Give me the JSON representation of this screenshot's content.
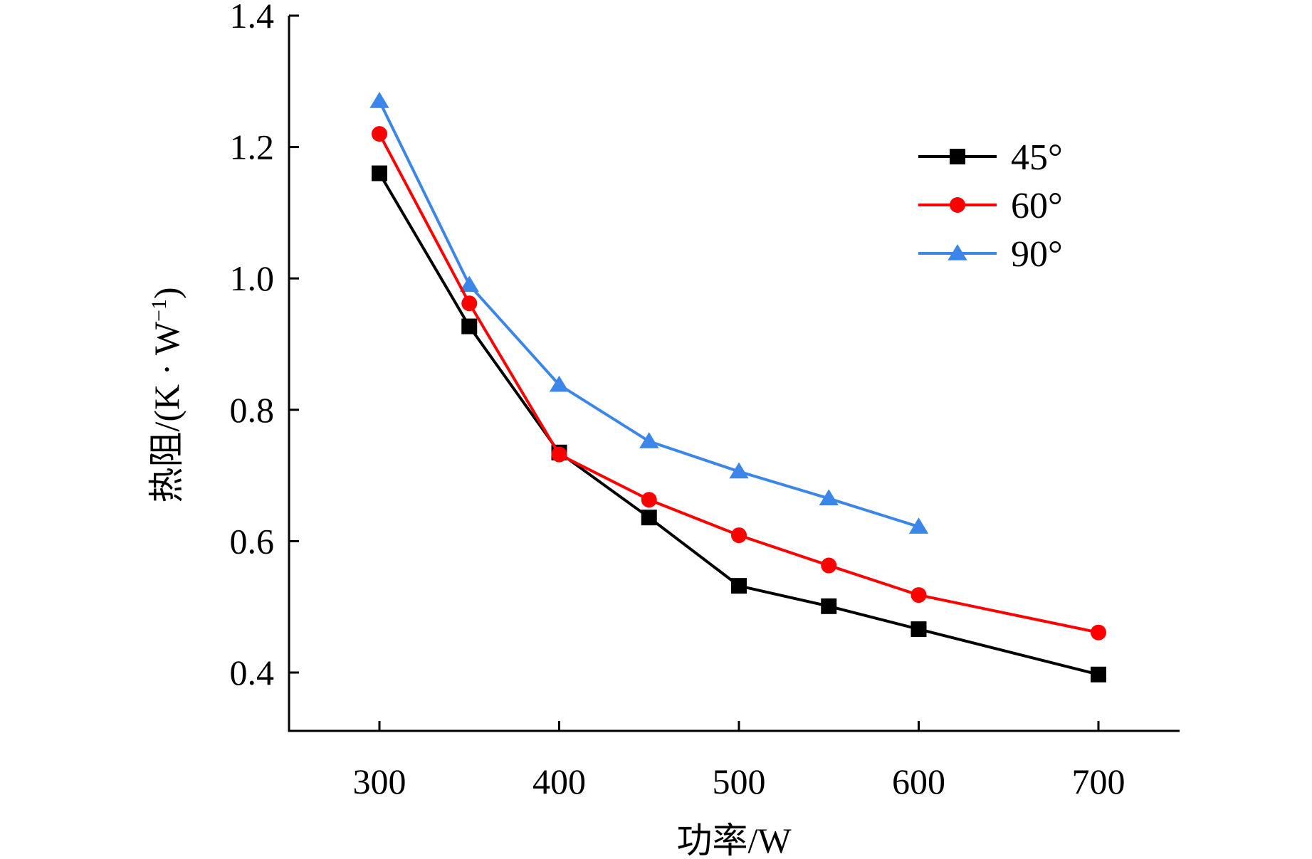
{
  "chart_data": {
    "type": "line",
    "title": "",
    "xlabel": "功率/W",
    "ylabel": "热阻/(K·W⁻¹)",
    "ylabel_parts": {
      "main": "热阻/(K · W",
      "superscript": "−1",
      "close": ")"
    },
    "xlim": [
      250,
      750
    ],
    "ylim": [
      0.3,
      1.4
    ],
    "xticks": [
      300,
      400,
      500,
      600,
      700
    ],
    "xtick_labels": [
      "300",
      "400",
      "500",
      "600",
      "700"
    ],
    "yticks": [
      0.4,
      0.6,
      0.8,
      1.0,
      1.2,
      1.4
    ],
    "ytick_labels": [
      "0.4",
      "0.6",
      "0.8",
      "1.0",
      "1.2",
      "1.4"
    ],
    "grid": false,
    "legend_position": "top-right",
    "series": [
      {
        "name": "45°",
        "color": "#000000",
        "marker": "square",
        "x": [
          300,
          350,
          400,
          450,
          500,
          550,
          600,
          700
        ],
        "y": [
          1.16,
          0.927,
          0.735,
          0.636,
          0.532,
          0.501,
          0.466,
          0.397
        ]
      },
      {
        "name": "60°",
        "color": "#ff0000",
        "marker": "circle",
        "x": [
          300,
          350,
          400,
          450,
          500,
          550,
          600,
          700
        ],
        "y": [
          1.22,
          0.962,
          0.732,
          0.663,
          0.609,
          0.563,
          0.518,
          0.461
        ]
      },
      {
        "name": "90°",
        "color": "#3b86e8",
        "marker": "triangle",
        "x": [
          300,
          350,
          400,
          450,
          500,
          550,
          600
        ],
        "y": [
          1.27,
          0.99,
          0.838,
          0.752,
          0.706,
          0.665,
          0.622
        ]
      }
    ]
  }
}
